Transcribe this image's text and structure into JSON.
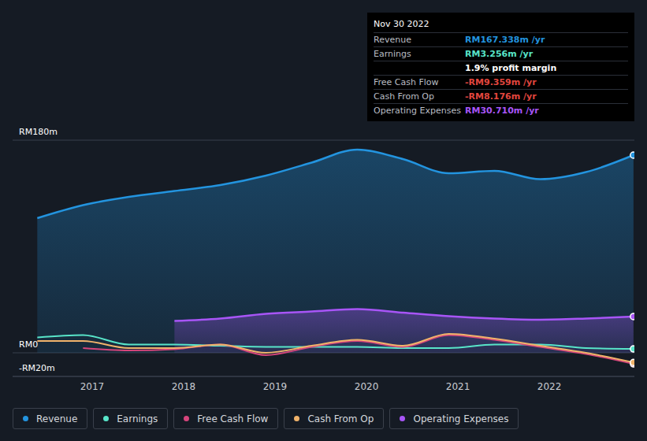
{
  "chart_data": {
    "type": "line",
    "x": [
      2016.4,
      2016.9,
      2017.4,
      2017.9,
      2018.4,
      2018.9,
      2019.4,
      2019.9,
      2020.4,
      2020.9,
      2021.4,
      2021.9,
      2022.4,
      2022.92
    ],
    "xlim": [
      2016.13,
      2022.93
    ],
    "xticks": [
      2017,
      2018,
      2019,
      2020,
      2021,
      2022
    ],
    "ylim": [
      -20,
      180
    ],
    "yticks": [
      {
        "value": -20,
        "label": "-RM20m"
      },
      {
        "value": 0,
        "label": "RM0"
      },
      {
        "value": 180,
        "label": "RM180m"
      }
    ],
    "grid": true,
    "legend": "bottom-left",
    "series": [
      {
        "name": "Revenue",
        "type": "area",
        "color": "#2394df",
        "values": [
          114,
          125,
          132,
          137,
          142,
          150,
          161,
          172,
          164,
          152,
          154,
          147,
          153,
          167.338
        ]
      },
      {
        "name": "Earnings",
        "type": "line",
        "color": "#58e5c9",
        "values": [
          13,
          15,
          7,
          7,
          6,
          5,
          5,
          5,
          4,
          4,
          7,
          7,
          4,
          3.256
        ]
      },
      {
        "name": "Free Cash Flow",
        "type": "line",
        "color": "#d6457c",
        "values": [
          null,
          4,
          2,
          3,
          7,
          -2,
          5,
          10,
          5,
          15,
          11,
          5,
          -1,
          -9.359
        ]
      },
      {
        "name": "Cash From Op",
        "type": "line",
        "color": "#f0b36b",
        "values": [
          10,
          10,
          4,
          4,
          7,
          0,
          6,
          11,
          6,
          16,
          12,
          6,
          0,
          -8.176
        ]
      },
      {
        "name": "Operating Expenses",
        "type": "area",
        "color": "#a855f7",
        "values": [
          null,
          null,
          null,
          27,
          29,
          33,
          35,
          37,
          34,
          31,
          29,
          28,
          29,
          30.71
        ]
      }
    ],
    "info_box": {
      "title": "Nov 30 2022",
      "rows": [
        {
          "label": "Revenue",
          "value": "RM167.338m /yr",
          "color": "#2394df"
        },
        {
          "label": "Earnings",
          "value": "RM3.256m /yr",
          "color": "#58e5c9"
        },
        {
          "value": "1.9% profit margin",
          "color": "#ffffff"
        },
        {
          "label": "Free Cash Flow",
          "value": "-RM9.359m /yr",
          "color": "#e2463e"
        },
        {
          "label": "Cash From Op",
          "value": "-RM8.176m /yr",
          "color": "#e2463e"
        },
        {
          "label": "Operating Expenses",
          "value": "RM30.710m /yr",
          "color": "#a855f7"
        }
      ]
    }
  }
}
